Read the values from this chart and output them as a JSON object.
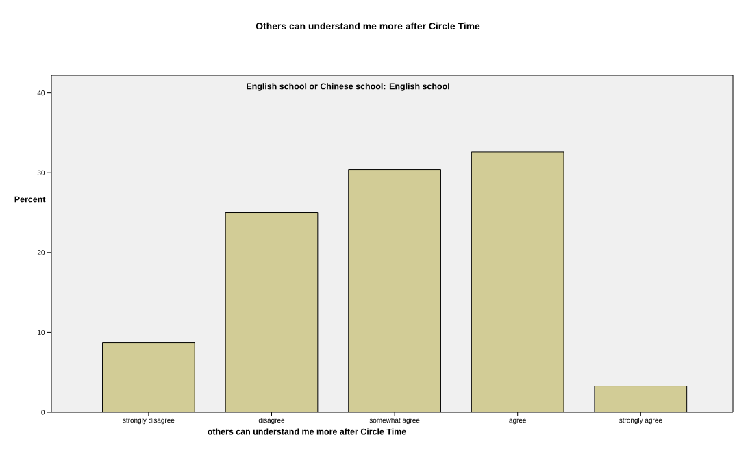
{
  "chart_data": {
    "type": "bar",
    "title": "Others can understand me more after Circle Time",
    "subtitle": "English school or Chinese school: English school",
    "xlabel": "others can understand me more after Circle Time",
    "ylabel": "Percent",
    "categories": [
      "strongly disagree",
      "disagree",
      "somewhat agree",
      "agree",
      "strongly agree"
    ],
    "values": [
      8.7,
      25.0,
      30.4,
      32.6,
      3.3
    ],
    "color": "#d2cc96",
    "ylim": [
      0,
      42.2
    ],
    "yticks": [
      0,
      10,
      20,
      30,
      40
    ],
    "grid": false
  }
}
